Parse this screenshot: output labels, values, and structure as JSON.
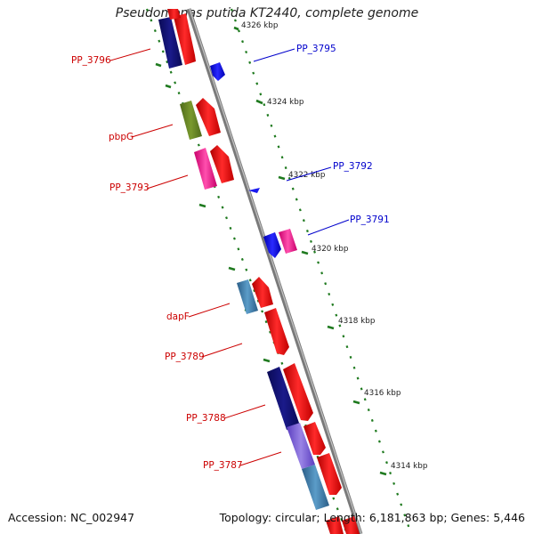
{
  "title": "Pseudomonas putida KT2440, complete genome",
  "footer": {
    "accession": "Accession: NC_002947",
    "summary": "Topology: circular; Length: 6,181,863 bp; Genes: 5,446"
  },
  "ruler": [
    {
      "label": "4326 kbp"
    },
    {
      "label": "4324 kbp"
    },
    {
      "label": "4322 kbp"
    },
    {
      "label": "4320 kbp"
    },
    {
      "label": "4318 kbp"
    },
    {
      "label": "4316 kbp"
    },
    {
      "label": "4314 kbp"
    }
  ],
  "gene_labels": [
    {
      "text": "PP_3796",
      "color": "#cc0000"
    },
    {
      "text": "PP_3795",
      "color": "#0000cc"
    },
    {
      "text": "pbpG",
      "color": "#cc0000"
    },
    {
      "text": "PP_3793",
      "color": "#cc0000"
    },
    {
      "text": "PP_3792",
      "color": "#0000cc"
    },
    {
      "text": "PP_3791",
      "color": "#0000cc"
    },
    {
      "text": "dapF",
      "color": "#cc0000"
    },
    {
      "text": "PP_3789",
      "color": "#cc0000"
    },
    {
      "text": "PP_3788",
      "color": "#cc0000"
    },
    {
      "text": "PP_3787",
      "color": "#cc0000"
    }
  ],
  "colors": {
    "backbone": "#7a7a7a",
    "ticks": "#1f7a1f",
    "cds": "#ff0000",
    "reverse_cds": "#0000ff"
  }
}
